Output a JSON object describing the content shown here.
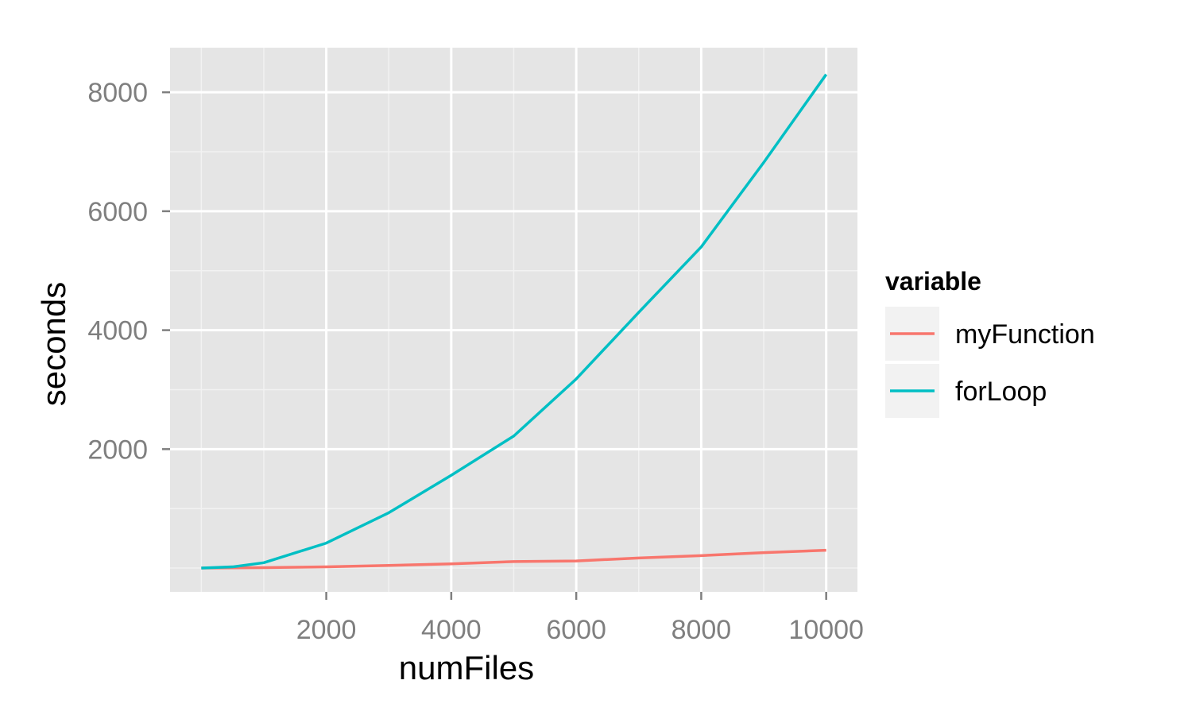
{
  "chart_data": {
    "type": "line",
    "xlabel": "numFiles",
    "ylabel": "seconds",
    "xlim": [
      -500,
      10500
    ],
    "ylim": [
      -400,
      8750
    ],
    "x_ticks": [
      2000,
      4000,
      6000,
      8000,
      10000
    ],
    "x_tick_labels": [
      "2000",
      "4000",
      "6000",
      "8000",
      "10000"
    ],
    "x_minor_ticks": [
      0,
      1000,
      3000,
      5000,
      7000,
      9000
    ],
    "y_ticks": [
      2000,
      4000,
      6000,
      8000
    ],
    "y_tick_labels": [
      "2000",
      "4000",
      "6000",
      "8000"
    ],
    "y_minor_ticks": [
      0,
      1000,
      3000,
      5000,
      7000
    ],
    "grid": true,
    "legend": {
      "title": "variable",
      "position": "right"
    },
    "series": [
      {
        "name": "myFunction",
        "color": "#F8766D",
        "x": [
          0,
          500,
          1000,
          2000,
          3000,
          4000,
          5000,
          6000,
          7000,
          8000,
          9000,
          10000
        ],
        "y": [
          0,
          4,
          8,
          20,
          45,
          70,
          110,
          120,
          170,
          210,
          260,
          300
        ]
      },
      {
        "name": "forLoop",
        "color": "#00BFC4",
        "x": [
          0,
          500,
          1000,
          2000,
          3000,
          4000,
          5000,
          6000,
          7000,
          8000,
          9000,
          10000
        ],
        "y": [
          0,
          20,
          90,
          420,
          930,
          1560,
          2220,
          3180,
          4300,
          5400,
          6820,
          8300
        ]
      }
    ]
  }
}
